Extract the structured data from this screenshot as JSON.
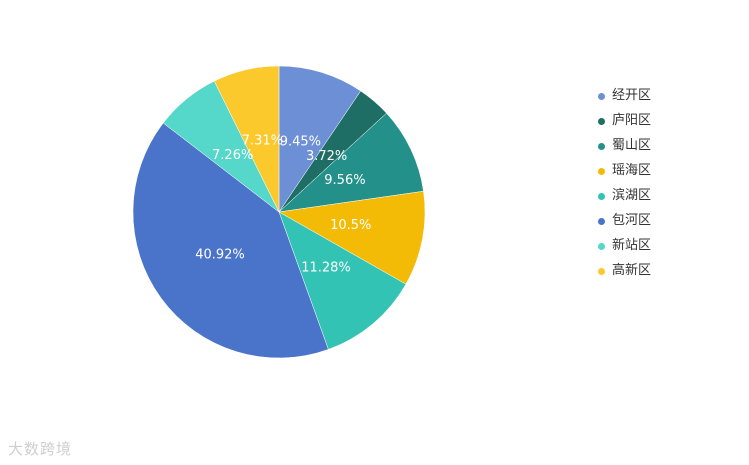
{
  "chart_data": {
    "type": "pie",
    "categories": [
      "经开区",
      "庐阳区",
      "蜀山区",
      "瑶海区",
      "滨湖区",
      "包河区",
      "新站区",
      "高新区"
    ],
    "values": [
      9.45,
      3.72,
      9.56,
      10.5,
      11.28,
      40.92,
      7.26,
      7.31
    ],
    "data_labels": [
      "9.45%",
      "3.72%",
      "9.56%",
      "10.5%",
      "11.28%",
      "40.92%",
      "7.26%",
      "7.31%"
    ],
    "colors": [
      "#6d8fd6",
      "#1f6e66",
      "#23918a",
      "#f3ba06",
      "#33c3b4",
      "#4a74c9",
      "#55d7ca",
      "#fbc92c"
    ],
    "legend_position": "right"
  },
  "watermark": {
    "text": "大数跨境"
  }
}
